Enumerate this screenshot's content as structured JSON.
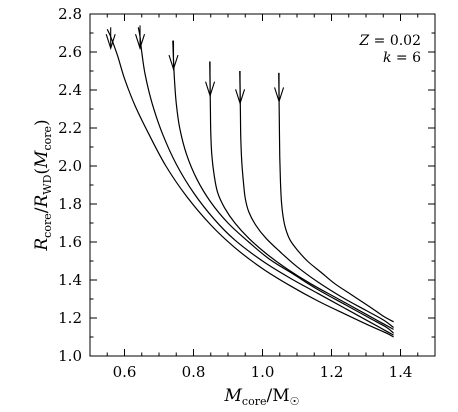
{
  "chart_data": {
    "type": "line",
    "title": "",
    "xlabel": "M_core/M_sun",
    "ylabel": "R_core/R_WD(M_core)",
    "xlim": [
      0.5,
      1.5
    ],
    "ylim": [
      1.0,
      2.8
    ],
    "x_ticks": [
      0.6,
      0.8,
      1.0,
      1.2,
      1.4
    ],
    "x_tick_labels": [
      "0.6",
      "0.8",
      "1.0",
      "1.2",
      "1.4"
    ],
    "y_ticks": [
      1.0,
      1.2,
      1.4,
      1.6,
      1.8,
      2.0,
      2.2,
      2.4,
      2.6,
      2.8
    ],
    "y_tick_labels": [
      "1.0",
      "1.2",
      "1.4",
      "1.6",
      "1.8",
      "2.0",
      "2.2",
      "2.4",
      "2.6",
      "2.8"
    ],
    "grid": false,
    "annotations": [
      "Z = 0.02",
      "k = 6"
    ],
    "series": [
      {
        "x": [
          0.55,
          0.56,
          0.58,
          0.6,
          0.63,
          0.67,
          0.72,
          0.78,
          0.85,
          0.92,
          1.0,
          1.08,
          1.16,
          1.24,
          1.31,
          1.36,
          1.38
        ],
        "y": [
          2.72,
          2.68,
          2.58,
          2.46,
          2.32,
          2.17,
          2.0,
          1.84,
          1.69,
          1.57,
          1.46,
          1.37,
          1.29,
          1.22,
          1.16,
          1.12,
          1.1
        ],
        "arrow": {
          "x": 0.56,
          "y_top": 2.73,
          "y_bottom": 2.62
        }
      },
      {
        "x": [
          0.64,
          0.645,
          0.65,
          0.66,
          0.68,
          0.71,
          0.75,
          0.8,
          0.86,
          0.92,
          1.0,
          1.08,
          1.16,
          1.24,
          1.31,
          1.36,
          1.38
        ],
        "y": [
          2.73,
          2.68,
          2.6,
          2.48,
          2.33,
          2.17,
          2.01,
          1.86,
          1.72,
          1.61,
          1.5,
          1.41,
          1.33,
          1.25,
          1.18,
          1.13,
          1.11
        ],
        "arrow": {
          "x": 0.645,
          "y_top": 2.74,
          "y_bottom": 2.62
        }
      },
      {
        "x": [
          0.74,
          0.742,
          0.745,
          0.75,
          0.76,
          0.78,
          0.81,
          0.85,
          0.9,
          0.96,
          1.02,
          1.09,
          1.16,
          1.24,
          1.31,
          1.36,
          1.38
        ],
        "y": [
          2.66,
          2.56,
          2.45,
          2.33,
          2.2,
          2.06,
          1.93,
          1.81,
          1.7,
          1.6,
          1.51,
          1.43,
          1.35,
          1.27,
          1.2,
          1.15,
          1.12
        ],
        "arrow": {
          "x": 0.742,
          "y_top": 2.66,
          "y_bottom": 2.51
        }
      },
      {
        "x": [
          0.847,
          0.848,
          0.849,
          0.85,
          0.853,
          0.86,
          0.87,
          0.89,
          0.92,
          0.96,
          1.01,
          1.07,
          1.14,
          1.22,
          1.3,
          1.35,
          1.38
        ],
        "y": [
          2.55,
          2.43,
          2.3,
          2.18,
          2.06,
          1.95,
          1.86,
          1.78,
          1.7,
          1.62,
          1.54,
          1.46,
          1.38,
          1.3,
          1.22,
          1.17,
          1.14
        ],
        "arrow": {
          "x": 0.848,
          "y_top": 2.55,
          "y_bottom": 2.37
        }
      },
      {
        "x": [
          0.934,
          0.935,
          0.936,
          0.937,
          0.94,
          0.945,
          0.95,
          0.96,
          0.98,
          1.01,
          1.05,
          1.1,
          1.16,
          1.23,
          1.3,
          1.35,
          1.38
        ],
        "y": [
          2.5,
          2.4,
          2.28,
          2.15,
          2.02,
          1.91,
          1.83,
          1.76,
          1.69,
          1.62,
          1.55,
          1.47,
          1.39,
          1.31,
          1.24,
          1.19,
          1.15
        ],
        "arrow": {
          "x": 0.935,
          "y_top": 2.5,
          "y_bottom": 2.33
        }
      },
      {
        "x": [
          1.047,
          1.048,
          1.049,
          1.05,
          1.052,
          1.055,
          1.06,
          1.067,
          1.08,
          1.1,
          1.13,
          1.17,
          1.21,
          1.26,
          1.31,
          1.35,
          1.38
        ],
        "y": [
          2.49,
          2.35,
          2.2,
          2.05,
          1.92,
          1.81,
          1.73,
          1.67,
          1.61,
          1.56,
          1.5,
          1.44,
          1.38,
          1.32,
          1.26,
          1.21,
          1.18
        ],
        "arrow": {
          "x": 1.048,
          "y_top": 2.49,
          "y_bottom": 2.34
        }
      }
    ]
  }
}
